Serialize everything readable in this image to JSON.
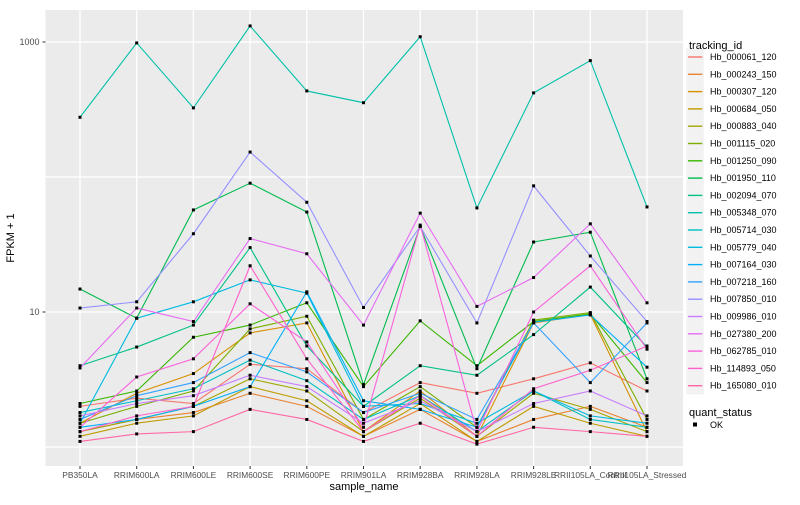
{
  "chart_data": {
    "type": "line",
    "title": "",
    "xlabel": "sample_name",
    "ylabel": "FPKM + 1",
    "y_scale": "log10",
    "ylim": [
      1,
      1500
    ],
    "grid": true,
    "legend_position": "right",
    "x_categories": [
      "PB350LA",
      "RRIM600LA",
      "RRIM600LE",
      "RRIM600SE",
      "RRIM600PE",
      "RRIM901LA",
      "RRIM928BA",
      "RRIM928LA",
      "RRIM928LE",
      "RRII105LA_Control",
      "RRII105LA_Stressed"
    ],
    "y_axis": {
      "ticks": [
        {
          "value": 10,
          "label": "10"
        },
        {
          "value": 1000,
          "label": "1000"
        }
      ],
      "gridline_values": [
        1,
        10,
        100,
        1000
      ]
    },
    "legend_color": {
      "title": "tracking_id"
    },
    "legend_shape": {
      "title": "quant_status",
      "items": [
        "OK"
      ]
    },
    "point": {
      "color": "#000000",
      "shape": "square"
    },
    "panel": {
      "background": "#EBEBEB",
      "grid_color": "#FFFFFF",
      "key_background": "#F2F2F2"
    },
    "series": [
      {
        "name": "Hb_000061_120",
        "color": "#F8766D",
        "values": [
          2.0,
          2.3,
          2.1,
          4.1,
          3.8,
          1.8,
          3.0,
          2.5,
          3.2,
          4.2,
          2.6
        ]
      },
      {
        "name": "Hb_000243_150",
        "color": "#EA8331",
        "values": [
          1.3,
          1.6,
          1.8,
          2.5,
          2.0,
          1.2,
          1.9,
          1.1,
          1.6,
          2.0,
          1.4
        ]
      },
      {
        "name": "Hb_000307_120",
        "color": "#D89000",
        "values": [
          1.5,
          2.5,
          3.5,
          7.0,
          8.3,
          1.3,
          2.6,
          1.2,
          8.3,
          9.6,
          1.3
        ]
      },
      {
        "name": "Hb_000684_050",
        "color": "#C09B00",
        "values": [
          1.2,
          1.5,
          1.7,
          2.8,
          2.2,
          1.2,
          2.1,
          1.1,
          2.0,
          1.5,
          1.2
        ]
      },
      {
        "name": "Hb_000883_040",
        "color": "#A3A500",
        "values": [
          1.3,
          1.6,
          2.0,
          3.2,
          2.6,
          1.3,
          2.3,
          1.2,
          2.5,
          1.9,
          1.3
        ]
      },
      {
        "name": "Hb_001115_020",
        "color": "#7CAE00",
        "values": [
          1.5,
          2.0,
          2.6,
          7.5,
          9.3,
          1.6,
          2.8,
          1.4,
          8.7,
          9.9,
          1.6
        ]
      },
      {
        "name": "Hb_001250_090",
        "color": "#39B600",
        "values": [
          2.1,
          2.6,
          6.5,
          8.0,
          11.7,
          2.8,
          8.6,
          4.0,
          8.5,
          9.7,
          3.0
        ]
      },
      {
        "name": "Hb_001950_110",
        "color": "#00BB4E",
        "values": [
          14.8,
          9.0,
          57,
          90,
          55,
          2.9,
          43,
          3.8,
          33,
          39,
          3.2
        ]
      },
      {
        "name": "Hb_002094_070",
        "color": "#00C087",
        "values": [
          4.0,
          5.5,
          8.0,
          30,
          5.6,
          2.0,
          4.0,
          3.4,
          6.8,
          15.3,
          5.5
        ]
      },
      {
        "name": "Hb_005348_070",
        "color": "#00C1A9",
        "values": [
          277,
          984,
          325,
          1315,
          434,
          355,
          1094,
          59,
          420,
          728,
          60
        ]
      },
      {
        "name": "Hb_005714_030",
        "color": "#00BFC4",
        "values": [
          1.8,
          2.2,
          2.7,
          4.4,
          3.1,
          1.6,
          2.4,
          1.3,
          2.6,
          1.6,
          1.4
        ]
      },
      {
        "name": "Hb_005779_040",
        "color": "#00BAE0",
        "values": [
          1.5,
          9.0,
          11.9,
          17.3,
          13.8,
          2.0,
          2.1,
          1.5,
          2.6,
          1.7,
          1.5
        ]
      },
      {
        "name": "Hb_007164_030",
        "color": "#00B0F6",
        "values": [
          1.4,
          1.6,
          2.0,
          2.8,
          14.1,
          2.2,
          1.9,
          1.4,
          8.4,
          9.5,
          3.9
        ]
      },
      {
        "name": "Hb_007218_160",
        "color": "#35A2FF",
        "values": [
          1.6,
          2.4,
          3.0,
          5.0,
          3.6,
          1.8,
          2.5,
          1.6,
          8.3,
          3.0,
          8.3
        ]
      },
      {
        "name": "Hb_007850_010",
        "color": "#9590FF",
        "values": [
          10.7,
          11.9,
          38,
          153,
          65,
          10.8,
          43,
          8.3,
          86,
          26,
          8.5
        ]
      },
      {
        "name": "Hb_009986_010",
        "color": "#C77CFF",
        "values": [
          1.7,
          2.1,
          2.4,
          3.4,
          2.8,
          1.5,
          2.2,
          1.3,
          2.1,
          2.6,
          1.7
        ]
      },
      {
        "name": "Hb_027380_200",
        "color": "#E76BF3",
        "values": [
          3.85,
          10.7,
          8.5,
          35,
          27,
          8.0,
          54,
          11.0,
          18,
          45,
          11.7
        ]
      },
      {
        "name": "Hb_062785_010",
        "color": "#FA62DB",
        "values": [
          1.4,
          3.3,
          4.5,
          11.5,
          6.0,
          1.4,
          44,
          1.3,
          10,
          22,
          5.3
        ]
      },
      {
        "name": "Hb_114893_050",
        "color": "#FF61CC",
        "values": [
          1.3,
          1.7,
          2.0,
          22,
          4.5,
          1.3,
          2.4,
          1.2,
          2.7,
          3.7,
          5.6
        ]
      },
      {
        "name": "Hb_165080_010",
        "color": "#FF67A4",
        "values": [
          1.1,
          1.25,
          1.3,
          1.9,
          1.6,
          1.1,
          1.5,
          1.05,
          1.4,
          1.3,
          1.2
        ]
      }
    ]
  }
}
